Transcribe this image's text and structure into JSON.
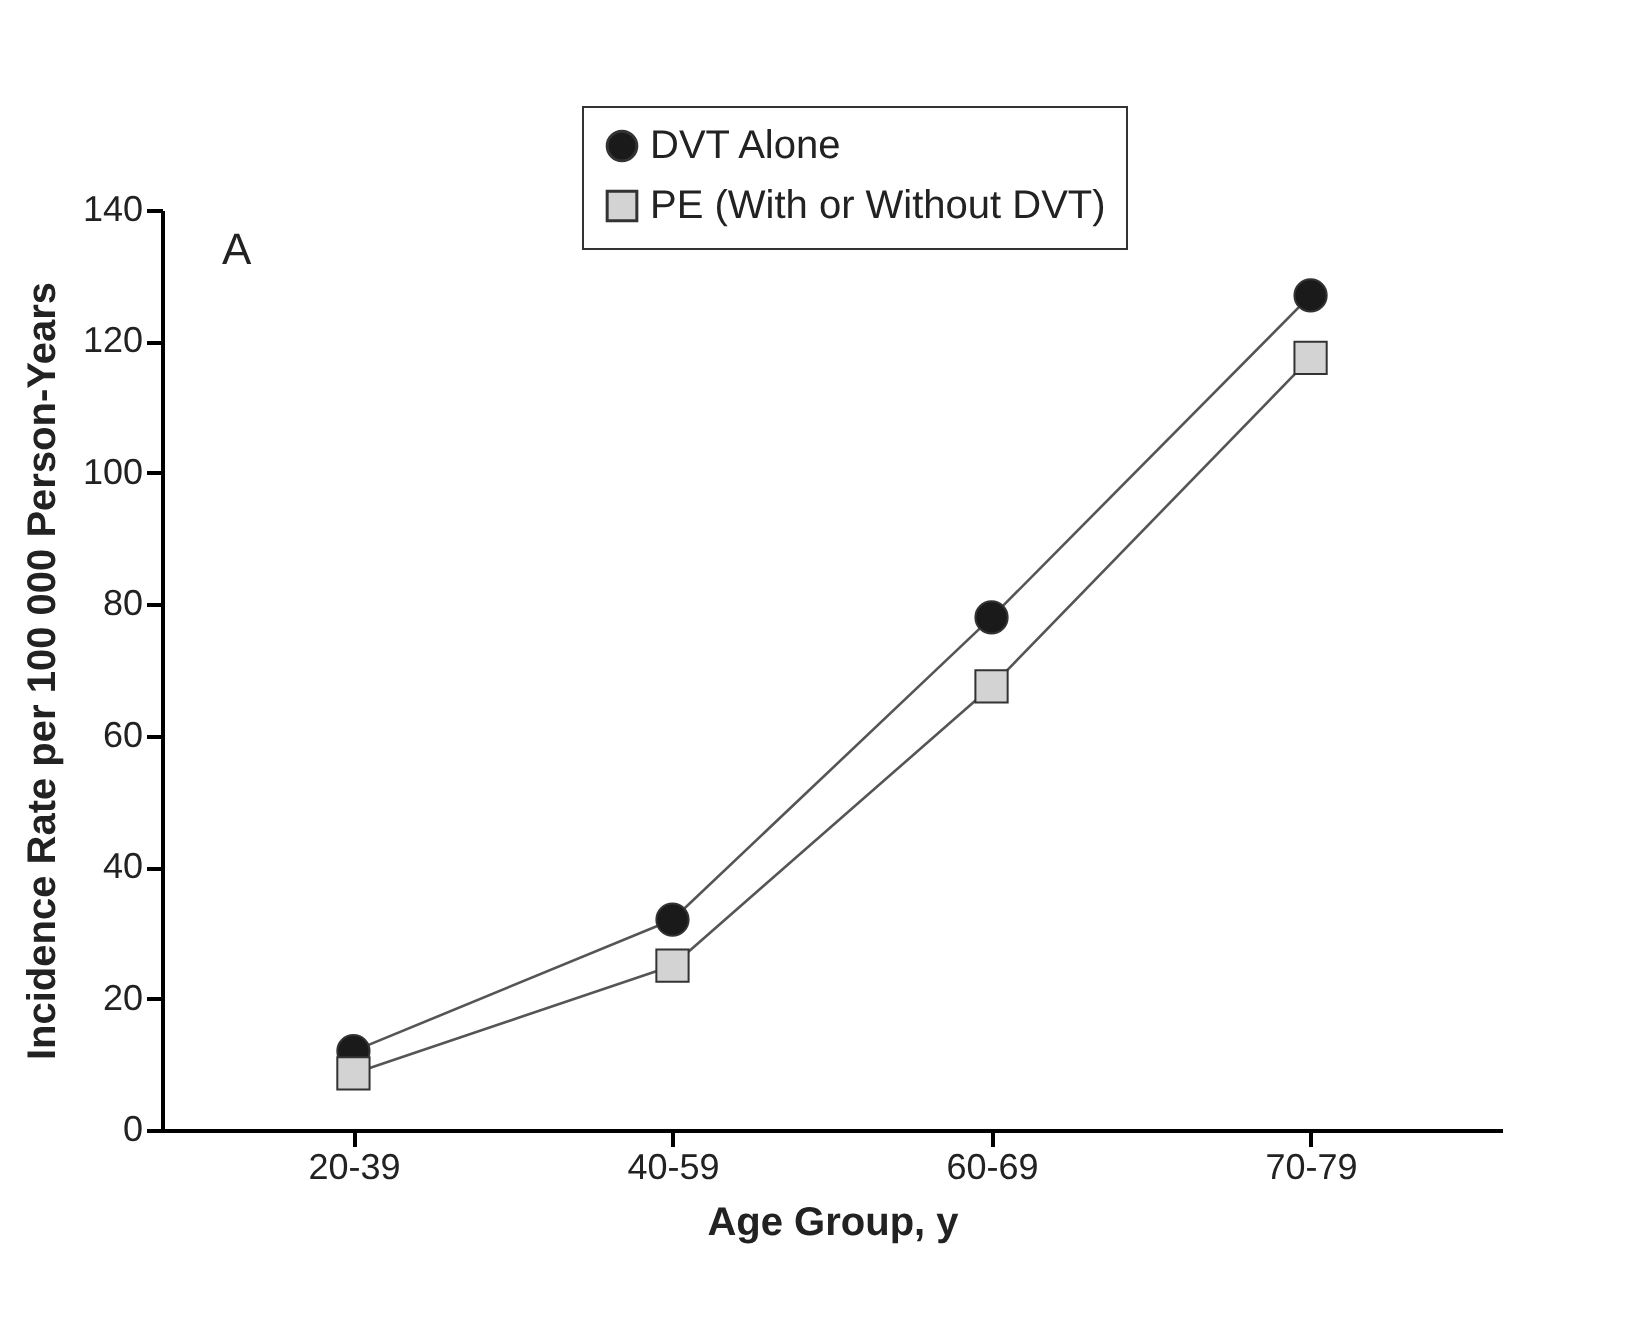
{
  "chart_data": {
    "type": "line",
    "xlabel": "Age Group, y",
    "ylabel": "Incidence Rate per 100 000 Person-Years",
    "categories": [
      "20-39",
      "40-59",
      "60-69",
      "70-79"
    ],
    "series": [
      {
        "name": "DVT Alone",
        "color": "#1a1a1a",
        "marker": "circle",
        "values": [
          12,
          32,
          78,
          127
        ]
      },
      {
        "name": "PE (With or Without DVT)",
        "color": "#d3d3d3",
        "marker": "square",
        "values": [
          8.6,
          25,
          67.5,
          117.5
        ]
      }
    ],
    "ylim": [
      0,
      140
    ],
    "yticks": [
      0,
      20,
      40,
      60,
      80,
      100,
      120,
      140
    ],
    "annotations": [
      "A"
    ],
    "legend": "top",
    "grid": false,
    "line_style": "solid"
  }
}
